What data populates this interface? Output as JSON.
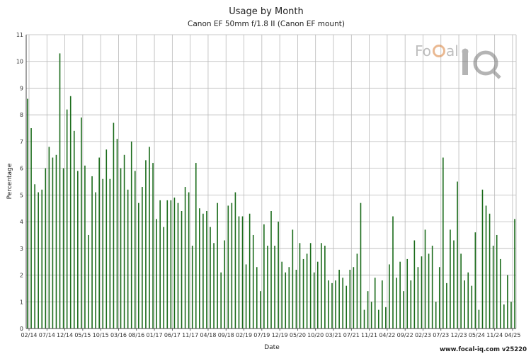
{
  "chart_data": {
    "type": "bar",
    "title": "Usage by Month",
    "subtitle": "Canon EF 50mm f/1.8 II (Canon EF mount)",
    "xlabel": "Date",
    "ylabel": "Percentage",
    "ylim": [
      0,
      11
    ],
    "yticks": [
      0,
      1,
      2,
      3,
      4,
      5,
      6,
      7,
      8,
      9,
      10,
      11
    ],
    "grid": true,
    "bar_color": "#1a6b1a",
    "x_tick_labels": [
      "02/14",
      "07/14",
      "12/14",
      "05/15",
      "10/15",
      "03/16",
      "08/16",
      "01/17",
      "06/17",
      "11/17",
      "04/18",
      "09/18",
      "02/19",
      "07/19",
      "12/19",
      "05/20",
      "10/20",
      "03/21",
      "07/21",
      "11/21",
      "04/22",
      "09/22",
      "02/23",
      "07/23",
      "12/23",
      "05/24",
      "11/24",
      "04/25"
    ],
    "values": [
      8.6,
      7.5,
      5.4,
      5.1,
      5.2,
      6.0,
      6.8,
      6.4,
      6.5,
      10.3,
      6.0,
      8.2,
      8.7,
      7.4,
      5.9,
      7.9,
      6.1,
      3.5,
      5.7,
      5.1,
      6.4,
      5.6,
      6.7,
      5.6,
      7.7,
      7.1,
      6.0,
      6.5,
      5.2,
      7.0,
      5.9,
      4.7,
      5.3,
      6.3,
      6.8,
      6.2,
      4.1,
      4.8,
      3.8,
      4.8,
      4.8,
      4.9,
      4.7,
      4.4,
      5.3,
      5.1,
      3.1,
      6.2,
      4.5,
      4.3,
      4.4,
      3.8,
      3.2,
      4.7,
      2.1,
      3.3,
      4.6,
      4.7,
      5.1,
      4.2,
      4.2,
      2.4,
      4.3,
      3.5,
      2.3,
      1.4,
      3.9,
      3.1,
      4.4,
      3.1,
      4.0,
      2.5,
      2.1,
      2.3,
      3.7,
      2.2,
      3.2,
      2.6,
      2.8,
      3.2,
      2.1,
      2.5,
      3.2,
      3.1,
      1.8,
      1.7,
      1.8,
      2.2,
      1.9,
      1.6,
      2.2,
      2.3,
      2.8,
      4.7,
      0.7,
      1.4,
      1.0,
      1.9,
      0.7,
      1.8,
      0.8,
      2.4,
      4.2,
      1.9,
      2.5,
      1.4,
      2.6,
      1.8,
      3.3,
      2.3,
      2.7,
      3.7,
      2.8,
      3.1,
      1.0,
      2.3,
      6.4,
      1.7,
      3.7,
      3.3,
      5.5,
      2.8,
      1.8,
      2.1,
      1.6,
      3.6,
      0.7,
      5.2,
      4.6,
      4.3,
      3.1,
      3.5,
      2.6,
      0.9,
      2.0,
      1.0,
      4.1
    ]
  },
  "credit": "www.focal-iq.com  v25220",
  "logo": {
    "name": "focal-iq-logo",
    "text": "FoCal iQ"
  }
}
